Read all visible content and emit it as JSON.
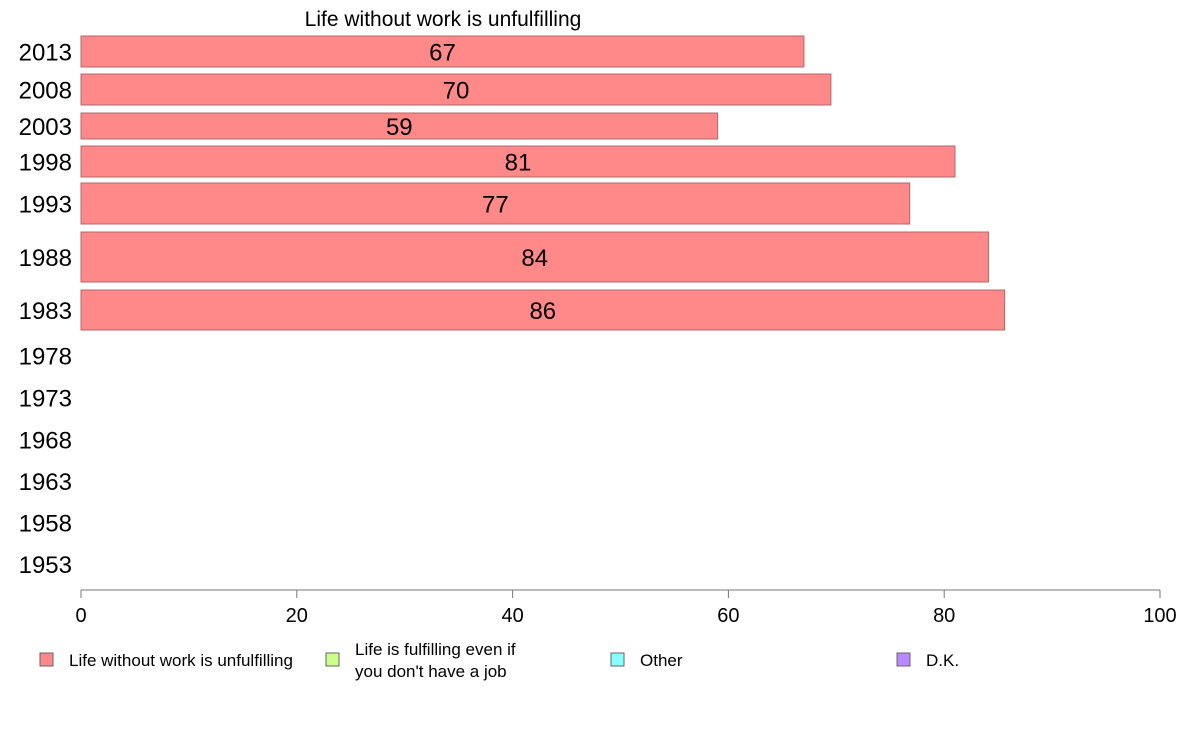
{
  "chart_data": {
    "type": "bar",
    "orientation": "horizontal",
    "title": "Life without work is unfulfilling",
    "xlabel": "",
    "ylabel": "",
    "xlim": [
      0,
      100
    ],
    "x_ticks": [
      0,
      20,
      40,
      60,
      80,
      100
    ],
    "categories": [
      "2013",
      "2008",
      "2003",
      "1998",
      "1993",
      "1988",
      "1983",
      "1978",
      "1973",
      "1968",
      "1963",
      "1958",
      "1953"
    ],
    "series": [
      {
        "name": "Life without work is unfulfilling",
        "color": "#ff8888",
        "values": [
          67,
          69.5,
          59,
          81,
          76.8,
          84.1,
          85.6,
          null,
          null,
          null,
          null,
          null,
          null
        ],
        "labels": [
          "67",
          "70",
          "59",
          "81",
          "77",
          "84",
          "86",
          "",
          "",
          "",
          "",
          "",
          ""
        ]
      }
    ],
    "legend": {
      "placement": "bottom",
      "items": [
        {
          "lines": [
            "Life without work is unfulfilling"
          ],
          "color": "#ff8888"
        },
        {
          "lines": [
            "Life is fulfilling even if",
            "you don't have a job"
          ],
          "color": "#ccff88"
        },
        {
          "lines": [
            "Other"
          ],
          "color": "#88ffff"
        },
        {
          "lines": [
            "D.K."
          ],
          "color": "#bb88ff"
        }
      ]
    },
    "grid": false
  }
}
